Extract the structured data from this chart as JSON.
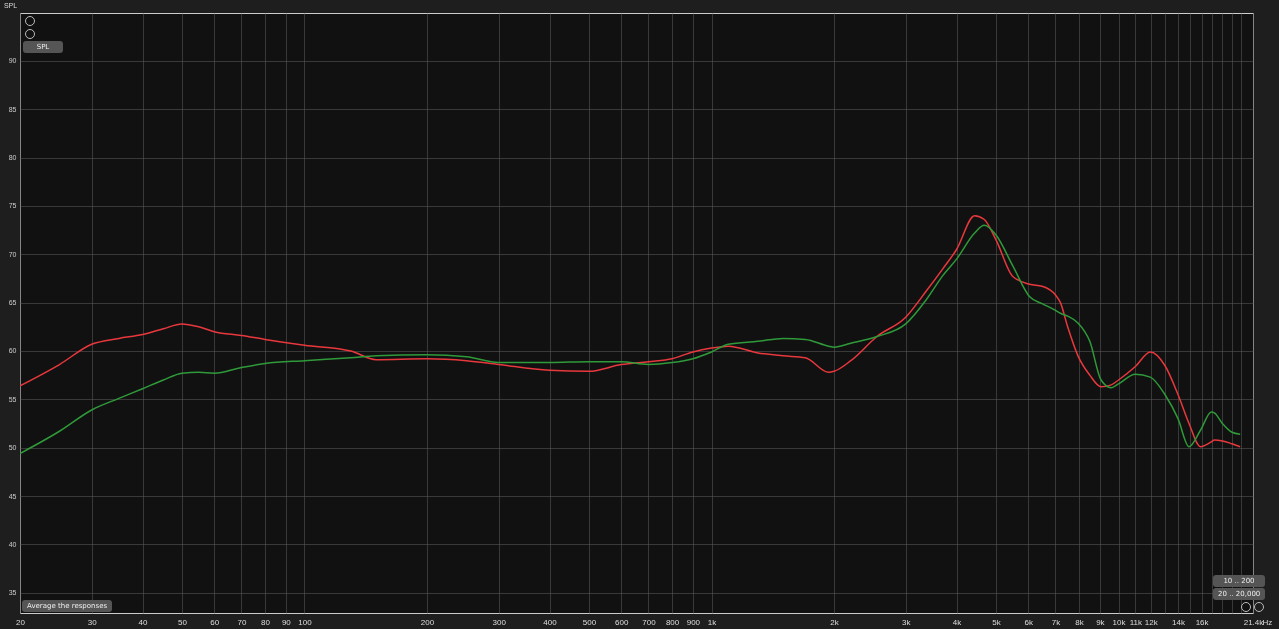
{
  "chart_data": {
    "type": "line",
    "ylabel": "SPL",
    "x": [
      20,
      25,
      30,
      35,
      40,
      45,
      50,
      55,
      60,
      70,
      80,
      100,
      130,
      150,
      200,
      250,
      300,
      400,
      500,
      600,
      700,
      800,
      900,
      1000,
      1100,
      1300,
      1500,
      1700,
      1940,
      2000,
      2200,
      2550,
      3000,
      3370,
      3700,
      4000,
      4430,
      4680,
      5000,
      5500,
      6050,
      6490,
      7000,
      7200,
      7500,
      7950,
      8500,
      9060,
      9600,
      10000,
      11000,
      11970,
      13000,
      14000,
      14900,
      15900,
      16900,
      17200,
      18000,
      19000,
      19900
    ],
    "series": [
      {
        "color": "#e8383d",
        "values": [
          56.4,
          58.6,
          60.7,
          61.3,
          61.7,
          62.3,
          62.8,
          62.5,
          62.0,
          61.6,
          61.2,
          60.6,
          60.0,
          59.1,
          59.2,
          59.0,
          58.6,
          58.0,
          57.9,
          58.6,
          58.9,
          59.2,
          59.9,
          60.3,
          60.5,
          59.8,
          59.5,
          59.3,
          57.8,
          57.9,
          59.0,
          61.5,
          63.5,
          66.2,
          68.5,
          70.5,
          74.0,
          73.6,
          71.5,
          67.7,
          66.9,
          66.7,
          65.8,
          65.0,
          62.5,
          59.5,
          57.5,
          56.3,
          56.5,
          57.0,
          58.4,
          59.9,
          58.5,
          55.5,
          52.5,
          50.1,
          50.6,
          50.8,
          50.7,
          50.4,
          50.1
        ]
      },
      {
        "color": "#2f9a3a",
        "values": [
          49.4,
          51.7,
          53.9,
          55.1,
          56.1,
          57.0,
          57.7,
          57.8,
          57.7,
          58.3,
          58.7,
          59.0,
          59.3,
          59.5,
          59.6,
          59.4,
          58.8,
          58.8,
          58.9,
          58.9,
          58.6,
          58.8,
          59.2,
          59.9,
          60.7,
          61.0,
          61.3,
          61.2,
          60.5,
          60.4,
          60.8,
          61.5,
          62.8,
          65.3,
          67.8,
          69.5,
          72.2,
          73.0,
          72.0,
          68.8,
          65.6,
          64.9,
          64.2,
          63.9,
          63.6,
          62.9,
          61.0,
          57.0,
          56.2,
          56.6,
          57.6,
          57.3,
          55.5,
          53.0,
          50.1,
          51.8,
          53.7,
          53.6,
          52.5,
          51.6,
          51.4
        ]
      }
    ],
    "xlim": [
      20,
      21400
    ],
    "xticks": [
      20,
      30,
      40,
      50,
      60,
      70,
      80,
      90,
      100,
      200,
      300,
      400,
      500,
      600,
      700,
      800,
      900,
      {
        "value": 1000,
        "label": "1k"
      },
      {
        "value": 2000,
        "label": "2k"
      },
      {
        "value": 3000,
        "label": "3k"
      },
      {
        "value": 4000,
        "label": "4k"
      },
      {
        "value": 5000,
        "label": "5k"
      },
      {
        "value": 6000,
        "label": "6k"
      },
      {
        "value": 7000,
        "label": "7k"
      },
      {
        "value": 8000,
        "label": "8k"
      },
      {
        "value": 9000,
        "label": "9k"
      },
      {
        "value": 10000,
        "label": "10k"
      },
      {
        "value": 11000,
        "label": "11k"
      },
      {
        "value": 12000,
        "label": "12k"
      },
      {
        "value": 13000,
        "label": null
      },
      {
        "value": 14000,
        "label": "14k"
      },
      {
        "value": 15000,
        "label": null
      },
      {
        "value": 16000,
        "label": "16k"
      },
      {
        "value": 17000,
        "label": null
      },
      {
        "value": 18000,
        "label": null
      },
      {
        "value": 19000,
        "label": null
      },
      {
        "value": 20000,
        "label": null
      },
      {
        "value": 21400,
        "label": "21.4k"
      }
    ],
    "xlabel": "Hz",
    "log": "x",
    "ylim": [
      32.9,
      94.96
    ],
    "yticks": [
      35,
      40,
      45,
      50,
      55,
      60,
      65,
      70,
      75,
      80,
      85,
      90
    ],
    "grid": true,
    "annotations": [
      "SPL",
      "Average the responses",
      "10 .. 200",
      "20 .. 20,000"
    ]
  }
}
